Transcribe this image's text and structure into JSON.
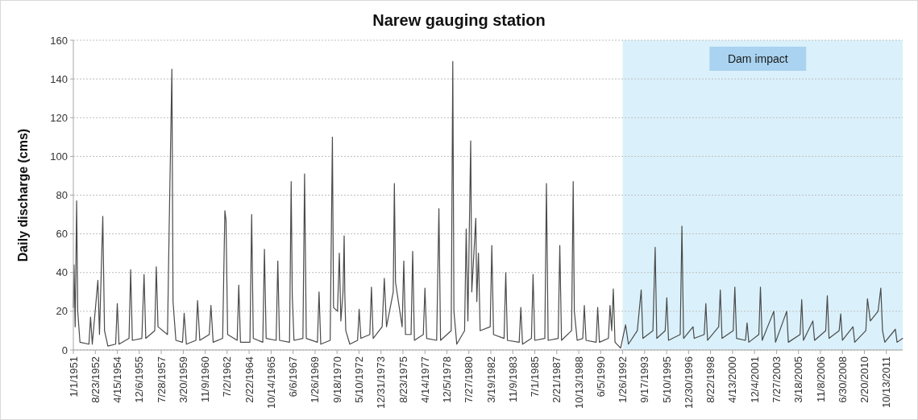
{
  "chart_data": {
    "type": "line",
    "title": "Narew gauging station",
    "ylabel": "Daily discharge (cms)",
    "series": [
      {
        "color": "#4a4a4a",
        "x": [
          "1951-01-01",
          "1951-01-20",
          "1951-02-20",
          "1951-04-01",
          "1951-05-01",
          "1951-07-01",
          "1952-03-01",
          "1952-04-15",
          "1952-06-01",
          "1952-11-01",
          "1952-12-15",
          "1953-03-15",
          "1953-05-01",
          "1953-08-01",
          "1954-03-01",
          "1954-04-15",
          "1954-06-01",
          "1955-03-01",
          "1955-04-15",
          "1955-06-01",
          "1956-02-15",
          "1956-04-15",
          "1956-06-01",
          "1957-02-01",
          "1957-03-15",
          "1957-05-01",
          "1958-01-15",
          "1958-03-01",
          "1958-05-15",
          "1958-06-15",
          "1958-09-01",
          "1959-03-01",
          "1959-04-15",
          "1959-06-15",
          "1960-03-01",
          "1960-04-15",
          "1960-06-15",
          "1961-03-01",
          "1961-04-15",
          "1961-06-15",
          "1962-03-01",
          "1962-05-01",
          "1962-06-01",
          "1962-07-15",
          "1963-04-01",
          "1963-05-15",
          "1963-07-01",
          "1964-03-15",
          "1964-05-01",
          "1964-06-15",
          "1965-03-01",
          "1965-04-15",
          "1965-06-01",
          "1966-03-01",
          "1966-04-15",
          "1966-06-01",
          "1967-03-01",
          "1967-04-15",
          "1967-05-15",
          "1967-07-01",
          "1968-03-01",
          "1968-04-15",
          "1968-06-01",
          "1969-04-01",
          "1969-05-15",
          "1969-07-01",
          "1970-03-15",
          "1970-05-15",
          "1970-06-15",
          "1970-10-01",
          "1970-11-20",
          "1971-01-01",
          "1971-03-01",
          "1971-04-01",
          "1971-04-20",
          "1971-05-15",
          "1971-09-01",
          "1972-04-01",
          "1972-05-15",
          "1972-07-01",
          "1973-03-01",
          "1973-04-15",
          "1973-06-01",
          "1974-02-01",
          "1974-04-01",
          "1974-06-01",
          "1974-12-01",
          "1975-01-01",
          "1975-02-01",
          "1975-08-01",
          "1975-09-15",
          "1975-11-01",
          "1976-04-01",
          "1976-05-15",
          "1976-07-01",
          "1977-03-01",
          "1977-04-15",
          "1977-06-01",
          "1978-03-01",
          "1978-05-01",
          "1978-06-15",
          "1979-04-01",
          "1979-05-15",
          "1979-06-15",
          "1979-09-01",
          "1980-04-01",
          "1980-05-15",
          "1980-07-01",
          "1980-09-15",
          "1980-10-15",
          "1981-02-01",
          "1981-03-01",
          "1981-04-15",
          "1981-06-01",
          "1982-03-01",
          "1982-04-15",
          "1982-06-01",
          "1983-03-15",
          "1983-05-01",
          "1983-06-15",
          "1984-05-01",
          "1984-06-15",
          "1984-08-01",
          "1985-04-01",
          "1985-05-15",
          "1985-07-01",
          "1986-04-01",
          "1986-05-15",
          "1986-07-01",
          "1987-04-01",
          "1987-05-15",
          "1987-07-01",
          "1988-04-01",
          "1988-05-15",
          "1988-06-15",
          "1988-09-01",
          "1989-02-01",
          "1989-03-15",
          "1989-05-01",
          "1990-02-01",
          "1990-03-15",
          "1990-05-01",
          "1991-01-01",
          "1991-02-15",
          "1991-04-01",
          "1991-05-15",
          "1991-07-01",
          "1991-12-01",
          "1992-04-15",
          "1992-07-01",
          "1993-03-01",
          "1993-06-15",
          "1993-08-01",
          "1994-05-01",
          "1994-07-01",
          "1994-08-15",
          "1995-04-01",
          "1995-05-15",
          "1995-07-01",
          "1996-05-15",
          "1996-07-01",
          "1996-08-15",
          "1997-05-01",
          "1997-06-01",
          "1998-03-01",
          "1998-04-15",
          "1998-06-01",
          "1999-04-01",
          "1999-05-15",
          "1999-07-01",
          "2000-05-01",
          "2000-06-15",
          "2000-08-01",
          "2001-04-01",
          "2001-05-15",
          "2001-07-01",
          "2002-04-01",
          "2002-05-15",
          "2002-07-01",
          "2003-05-15",
          "2003-07-01",
          "2004-05-01",
          "2004-06-15",
          "2005-05-01",
          "2005-06-15",
          "2005-08-01",
          "2006-04-15",
          "2006-06-01",
          "2007-04-01",
          "2007-05-15",
          "2007-07-01",
          "2008-04-01",
          "2008-05-15",
          "2008-07-01",
          "2009-04-15",
          "2009-06-01",
          "2010-04-01",
          "2010-05-15",
          "2010-08-01",
          "2011-03-01",
          "2011-05-15",
          "2011-07-01",
          "2011-09-01",
          "2012-06-15",
          "2012-08-01",
          "2012-12-31"
        ],
        "values": [
          22,
          44,
          12,
          77,
          20,
          4,
          3,
          17,
          3,
          36,
          8,
          69,
          10,
          2,
          3,
          24,
          3,
          6,
          41.5,
          5,
          6,
          39,
          6,
          10,
          43,
          12,
          8,
          62.5,
          145,
          25,
          5,
          4,
          19,
          3,
          5,
          25.5,
          5,
          8,
          23,
          4,
          6,
          72,
          67,
          8,
          5,
          33.5,
          4,
          4,
          70,
          6,
          4,
          52,
          6,
          5,
          46,
          5,
          4,
          87,
          28,
          5,
          6,
          91,
          6,
          4,
          30,
          3,
          5,
          110,
          22,
          20,
          50,
          15,
          30,
          59,
          28,
          10,
          3,
          5,
          21,
          6,
          8,
          32.5,
          6,
          12,
          37,
          12,
          30,
          86,
          35,
          12,
          46,
          8,
          8,
          51,
          5,
          8,
          32,
          6,
          5,
          73,
          5,
          10,
          149,
          20,
          3,
          10,
          62.5,
          15,
          108,
          30,
          68,
          25,
          50,
          10,
          12,
          54,
          8,
          6,
          40,
          5,
          4,
          22,
          3,
          6,
          39,
          5,
          6,
          86,
          5,
          6,
          54,
          5,
          10,
          87,
          20,
          5,
          6,
          23,
          5,
          4,
          22,
          4,
          6,
          23,
          10,
          31.5,
          4,
          1,
          13,
          3,
          10,
          31,
          6,
          10,
          53,
          6,
          10,
          27,
          5,
          8,
          64,
          6,
          12,
          6,
          8,
          24,
          5,
          12,
          31,
          6,
          10,
          32.5,
          6,
          5,
          14,
          4,
          8,
          32.5,
          5,
          20,
          4,
          20,
          4,
          8,
          26,
          5,
          15,
          5,
          10,
          28,
          6,
          10,
          18.7,
          5,
          12,
          4,
          10,
          26.5,
          15,
          20,
          32,
          10,
          4,
          10.7,
          4,
          6
        ]
      }
    ],
    "xlim": [
      "1951-01-01",
      "2013-01-01"
    ],
    "xticks": [
      {
        "value": "1951-01-01",
        "label": "1/1/1951"
      },
      {
        "value": "1952-08-23",
        "label": "8/23/1952"
      },
      {
        "value": "1954-04-15",
        "label": "4/15/1954"
      },
      {
        "value": "1955-12-06",
        "label": "12/6/1955"
      },
      {
        "value": "1957-07-28",
        "label": "7/28/1957"
      },
      {
        "value": "1959-03-20",
        "label": "3/20/1959"
      },
      {
        "value": "1960-11-09",
        "label": "11/9/1960"
      },
      {
        "value": "1962-07-02",
        "label": "7/2/1962"
      },
      {
        "value": "1964-02-22",
        "label": "2/22/1964"
      },
      {
        "value": "1965-10-14",
        "label": "10/14/1965"
      },
      {
        "value": "1967-06-06",
        "label": "6/6/1967"
      },
      {
        "value": "1969-01-26",
        "label": "1/26/1969"
      },
      {
        "value": "1970-09-18",
        "label": "9/18/1970"
      },
      {
        "value": "1972-05-10",
        "label": "5/10/1972"
      },
      {
        "value": "1973-12-31",
        "label": "12/31/1973"
      },
      {
        "value": "1975-08-23",
        "label": "8/23/1975"
      },
      {
        "value": "1977-04-14",
        "label": "4/14/1977"
      },
      {
        "value": "1978-12-05",
        "label": "12/5/1978"
      },
      {
        "value": "1980-07-27",
        "label": "7/27/1980"
      },
      {
        "value": "1982-03-19",
        "label": "3/19/1982"
      },
      {
        "value": "1983-11-09",
        "label": "11/9/1983"
      },
      {
        "value": "1985-07-01",
        "label": "7/1/1985"
      },
      {
        "value": "1987-02-21",
        "label": "2/21/1987"
      },
      {
        "value": "1988-10-13",
        "label": "10/13/1988"
      },
      {
        "value": "1990-06-05",
        "label": "6/5/1990"
      },
      {
        "value": "1992-01-26",
        "label": "1/26/1992"
      },
      {
        "value": "1993-09-17",
        "label": "9/17/1993"
      },
      {
        "value": "1995-05-10",
        "label": "5/10/1995"
      },
      {
        "value": "1996-12-30",
        "label": "12/30/1996"
      },
      {
        "value": "1998-08-22",
        "label": "8/22/1998"
      },
      {
        "value": "2000-04-13",
        "label": "4/13/2000"
      },
      {
        "value": "2001-12-04",
        "label": "12/4/2001"
      },
      {
        "value": "2003-07-27",
        "label": "7/27/2003"
      },
      {
        "value": "2005-03-18",
        "label": "3/18/2005"
      },
      {
        "value": "2006-11-08",
        "label": "11/8/2006"
      },
      {
        "value": "2008-06-30",
        "label": "6/30/2008"
      },
      {
        "value": "2010-02-20",
        "label": "2/20/2010"
      },
      {
        "value": "2011-10-13",
        "label": "10/13/2011"
      }
    ],
    "ylim": [
      0,
      160
    ],
    "yticks": [
      0,
      20,
      40,
      60,
      80,
      100,
      120,
      140,
      160
    ],
    "grid": "y",
    "bands": [
      {
        "axis": "x",
        "from": "1992-01-26",
        "to": "2013-01-01",
        "label": "Dam impact",
        "color": "#daf1fb"
      }
    ]
  }
}
